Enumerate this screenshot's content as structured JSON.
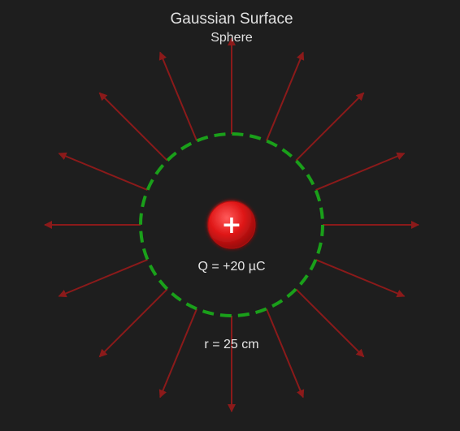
{
  "header": {
    "title": "Gaussian Surface",
    "subtitle": "Sphere"
  },
  "charge": {
    "symbol": "+",
    "label": "Q = +20 µC"
  },
  "surface": {
    "radius_label": "r = 25 cm"
  },
  "field_lines": {
    "count": 16
  },
  "colors": {
    "background": "#1e1e1e",
    "field_line": "#8b1a1a",
    "gaussian_surface": "#1aa01a",
    "charge_fill": "#e01818",
    "text": "#e0e0e0"
  }
}
